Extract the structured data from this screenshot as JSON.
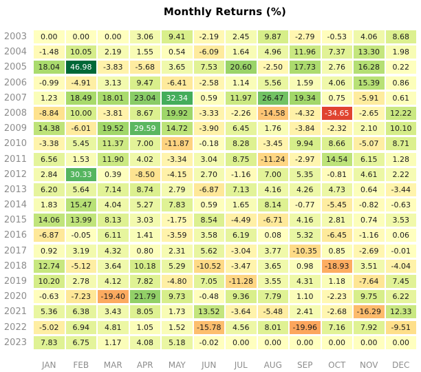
{
  "chart_data": {
    "type": "heatmap",
    "title": "Monthly Returns (%)",
    "x_labels": [
      "JAN",
      "FEB",
      "MAR",
      "APR",
      "MAY",
      "JUN",
      "JUL",
      "AUG",
      "SEP",
      "OCT",
      "NOV",
      "DEC"
    ],
    "y_labels": [
      "2003",
      "2004",
      "2005",
      "2006",
      "2007",
      "2008",
      "2009",
      "2010",
      "2011",
      "2012",
      "2013",
      "2014",
      "2015",
      "2016",
      "2017",
      "2018",
      "2019",
      "2020",
      "2021",
      "2022",
      "2023"
    ],
    "values": [
      [
        0.0,
        0.0,
        0.0,
        3.06,
        9.41,
        -2.19,
        2.45,
        9.87,
        -2.79,
        -0.53,
        4.06,
        8.68
      ],
      [
        -1.48,
        10.05,
        2.19,
        1.55,
        0.54,
        -6.09,
        1.64,
        4.96,
        11.96,
        7.37,
        13.3,
        1.98
      ],
      [
        18.04,
        46.98,
        -3.83,
        -5.68,
        3.65,
        7.53,
        20.6,
        -2.5,
        17.73,
        2.76,
        16.28,
        0.22
      ],
      [
        -0.99,
        -4.91,
        3.13,
        9.47,
        -6.41,
        -2.58,
        1.14,
        5.56,
        1.59,
        4.06,
        15.39,
        0.86
      ],
      [
        1.23,
        18.49,
        18.01,
        23.04,
        32.34,
        0.59,
        11.97,
        26.47,
        19.34,
        0.75,
        -5.91,
        0.61
      ],
      [
        -8.84,
        10.0,
        -3.81,
        8.67,
        19.92,
        -3.33,
        -2.26,
        -14.58,
        -4.32,
        -34.65,
        -2.65,
        12.22
      ],
      [
        14.38,
        -6.01,
        19.52,
        29.59,
        14.72,
        -3.9,
        6.45,
        1.76,
        -3.84,
        -2.32,
        2.1,
        10.1
      ],
      [
        -3.38,
        5.45,
        11.37,
        7.0,
        -11.87,
        -0.18,
        8.28,
        -3.45,
        9.94,
        8.66,
        -5.07,
        8.71
      ],
      [
        6.56,
        1.53,
        11.9,
        4.02,
        -3.34,
        3.04,
        8.75,
        -11.24,
        -2.97,
        14.54,
        6.15,
        1.28
      ],
      [
        2.84,
        30.33,
        0.39,
        -8.5,
        -4.15,
        2.7,
        -1.16,
        7.0,
        5.35,
        -0.81,
        4.61,
        2.22
      ],
      [
        6.2,
        5.64,
        7.14,
        8.74,
        2.79,
        -6.87,
        7.13,
        4.16,
        4.26,
        4.73,
        0.64,
        -3.44
      ],
      [
        1.83,
        15.47,
        4.04,
        5.27,
        7.83,
        0.59,
        1.65,
        8.14,
        -0.77,
        -5.45,
        -0.82,
        -0.63
      ],
      [
        14.06,
        13.99,
        8.13,
        3.03,
        -1.75,
        8.54,
        -4.49,
        -6.71,
        4.16,
        2.81,
        0.74,
        3.53
      ],
      [
        -6.87,
        -0.05,
        6.11,
        1.41,
        -3.59,
        3.58,
        6.19,
        0.08,
        5.32,
        -6.45,
        -1.16,
        0.06
      ],
      [
        0.92,
        3.19,
        4.32,
        0.8,
        2.31,
        5.62,
        -3.04,
        3.77,
        -10.35,
        0.85,
        -2.69,
        -0.01
      ],
      [
        12.74,
        -5.12,
        3.64,
        10.18,
        5.29,
        -10.52,
        -3.47,
        3.65,
        0.98,
        -18.93,
        3.51,
        -4.04
      ],
      [
        10.2,
        2.78,
        4.12,
        7.82,
        -4.8,
        7.05,
        -11.28,
        3.55,
        4.31,
        1.18,
        -7.64,
        7.45
      ],
      [
        -0.63,
        -7.23,
        -19.4,
        21.79,
        9.73,
        -0.48,
        9.36,
        7.79,
        1.1,
        -2.23,
        9.75,
        6.22
      ],
      [
        5.36,
        6.38,
        3.43,
        8.05,
        1.73,
        13.52,
        -3.64,
        -5.48,
        2.41,
        -2.68,
        -16.29,
        12.33
      ],
      [
        -5.02,
        6.94,
        4.81,
        1.05,
        1.52,
        -15.78,
        4.56,
        8.01,
        -19.96,
        7.16,
        7.92,
        -9.51
      ],
      [
        7.83,
        6.75,
        1.17,
        4.08,
        5.18,
        -0.02,
        0.0,
        0.0,
        0.0,
        0.0,
        0.0,
        0.0
      ]
    ],
    "value_decimals": 2,
    "colormap": "RdYlGn",
    "vmin": -46.98,
    "vmax": 46.98,
    "legend": "none",
    "grid_lines": "off"
  },
  "style": {
    "background": "#ffffff",
    "title_color": "#000000",
    "axis_label_color": "#8c8c8c",
    "cell_text_dark": "#1a1a1a",
    "cell_text_light": "#ffffff",
    "light_text_low_norm": 0.2,
    "light_text_high_norm": 0.8,
    "colormap_anchors": [
      "#a50026",
      "#d73027",
      "#f46d43",
      "#fdae61",
      "#fee08b",
      "#ffffbf",
      "#d9ef8b",
      "#a6d96a",
      "#66bd63",
      "#1a9850",
      "#006837"
    ]
  }
}
